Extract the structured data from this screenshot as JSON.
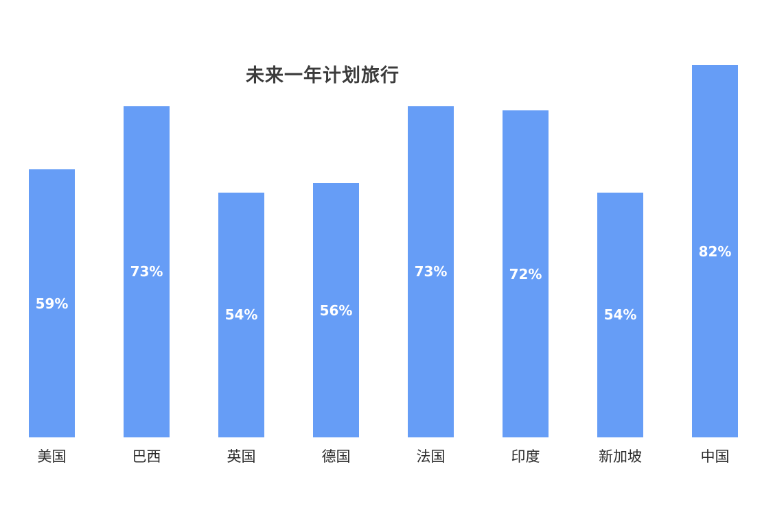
{
  "chart_data": {
    "type": "bar",
    "title": "未来一年计划旅行",
    "categories": [
      "美国",
      "巴西",
      "英国",
      "德国",
      "法国",
      "印度",
      "新加坡",
      "中国"
    ],
    "values": [
      59,
      73,
      54,
      56,
      73,
      72,
      54,
      82
    ],
    "data_labels": [
      "59%",
      "73%",
      "54%",
      "56%",
      "73%",
      "72%",
      "54%",
      "82%"
    ],
    "xlabel": "",
    "ylabel": "",
    "ylim": [
      0,
      100
    ],
    "grid": false,
    "legend": "none",
    "axes_hidden": true,
    "bar_color": "#669DF6",
    "data_label_color": "#FFFFFF",
    "category_label_color": "#2b2b2b",
    "title_color": "#3b3b3b"
  }
}
